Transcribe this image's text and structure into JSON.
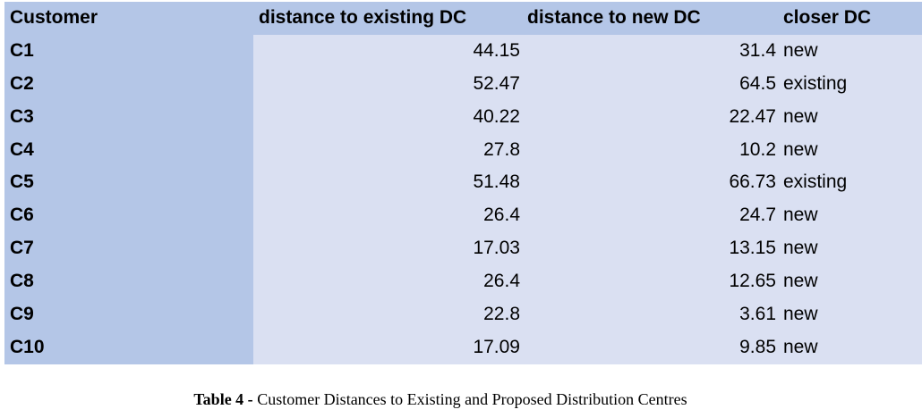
{
  "table": {
    "headers": [
      "Customer",
      "distance to existing DC",
      "distance to new DC",
      "closer DC"
    ],
    "rows": [
      {
        "customer": "C1",
        "existing": "44.15",
        "new": "31.4",
        "closer": "new"
      },
      {
        "customer": "C2",
        "existing": "52.47",
        "new": "64.5",
        "closer": "existing"
      },
      {
        "customer": "C3",
        "existing": "40.22",
        "new": "22.47",
        "closer": "new"
      },
      {
        "customer": "C4",
        "existing": "27.8",
        "new": "10.2",
        "closer": "new"
      },
      {
        "customer": "C5",
        "existing": "51.48",
        "new": "66.73",
        "closer": "existing"
      },
      {
        "customer": "C6",
        "existing": "26.4",
        "new": "24.7",
        "closer": "new"
      },
      {
        "customer": "C7",
        "existing": "17.03",
        "new": "13.15",
        "closer": "new"
      },
      {
        "customer": "C8",
        "existing": "26.4",
        "new": "12.65",
        "closer": "new"
      },
      {
        "customer": "C9",
        "existing": "22.8",
        "new": "3.61",
        "closer": "new"
      },
      {
        "customer": "C10",
        "existing": "17.09",
        "new": "9.85",
        "closer": "new"
      }
    ]
  },
  "caption": {
    "label": "Table 4 -",
    "text": " Customer Distances to Existing and Proposed Distribution Centres"
  },
  "colors": {
    "header_fill": "#b4c6e7",
    "body_fill": "#dae0f2"
  }
}
